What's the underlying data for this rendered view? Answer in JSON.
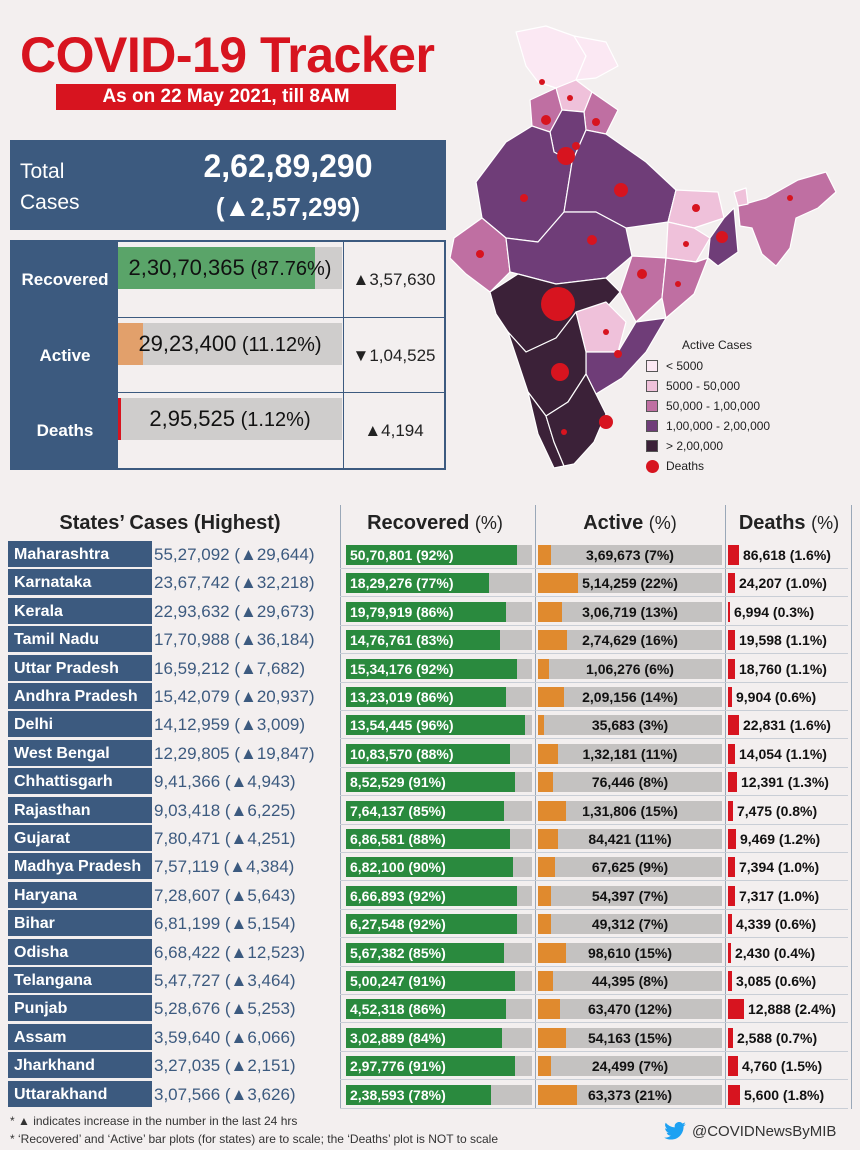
{
  "header": {
    "title": "COVID-19 Tracker",
    "date": "As on 22 May 2021, till 8AM"
  },
  "total": {
    "label": "Total Cases",
    "value": "2,62,89,290",
    "delta": "(▲2,57,299)"
  },
  "summary": [
    {
      "label": "Recovered",
      "value": "2,30,70,365",
      "pct_text": "(87.76%)",
      "pct": 87.76,
      "change": "▲3,57,630",
      "color": "#5aa469"
    },
    {
      "label": "Active",
      "value": "29,23,400",
      "pct_text": "(11.12%)",
      "pct": 11.12,
      "change": "▼1,04,525",
      "color": "#e2a06b"
    },
    {
      "label": "Deaths",
      "value": "2,95,525",
      "pct_text": "(1.12%)",
      "pct": 1.12,
      "change": "▲4,194",
      "color": "#d7141f"
    }
  ],
  "legend": {
    "title": "Active Cases",
    "items": [
      {
        "label": "< 5000",
        "color": "#fbe8f3"
      },
      {
        "label": "5000 - 50,000",
        "color": "#efc1da"
      },
      {
        "label": "50,000 - 1,00,000",
        "color": "#bf6fa2"
      },
      {
        "label": "1,00,000 - 2,00,000",
        "color": "#6f3d78"
      },
      {
        "label": "> 2,00,000",
        "color": "#3b2138"
      }
    ],
    "deaths_label": "Deaths"
  },
  "chart_data": {
    "type": "table",
    "title": "States' Cases (Highest)",
    "columns": [
      "States' Cases (Highest)",
      "Recovered (%)",
      "Active (%)",
      "Deaths (%)"
    ],
    "headers": {
      "states": "States’ Cases (Highest)",
      "recovered": "Recovered",
      "active": "Active",
      "deaths": "Deaths",
      "pct": "(%)"
    },
    "rows": [
      {
        "state": "Maharashtra",
        "cases": "55,27,092 (▲29,644)",
        "recovered": "50,70,801 (92%)",
        "rec_pct": 92,
        "active": "3,69,673 (7%)",
        "act_pct": 7,
        "deaths": "86,618 (1.6%)",
        "death_pct": 1.6
      },
      {
        "state": "Karnataka",
        "cases": "23,67,742 (▲32,218)",
        "recovered": "18,29,276 (77%)",
        "rec_pct": 77,
        "active": "5,14,259 (22%)",
        "act_pct": 22,
        "deaths": "24,207 (1.0%)",
        "death_pct": 1.0
      },
      {
        "state": "Kerala",
        "cases": "22,93,632 (▲29,673)",
        "recovered": "19,79,919 (86%)",
        "rec_pct": 86,
        "active": "3,06,719 (13%)",
        "act_pct": 13,
        "deaths": "6,994 (0.3%)",
        "death_pct": 0.3
      },
      {
        "state": "Tamil Nadu",
        "cases": "17,70,988 (▲36,184)",
        "recovered": "14,76,761 (83%)",
        "rec_pct": 83,
        "active": "2,74,629 (16%)",
        "act_pct": 16,
        "deaths": "19,598 (1.1%)",
        "death_pct": 1.1
      },
      {
        "state": "Uttar Pradesh",
        "cases": "16,59,212 (▲7,682)",
        "recovered": "15,34,176 (92%)",
        "rec_pct": 92,
        "active": "1,06,276 (6%)",
        "act_pct": 6,
        "deaths": "18,760 (1.1%)",
        "death_pct": 1.1
      },
      {
        "state": "Andhra Pradesh",
        "cases": "15,42,079 (▲20,937)",
        "recovered": "13,23,019 (86%)",
        "rec_pct": 86,
        "active": "2,09,156 (14%)",
        "act_pct": 14,
        "deaths": "9,904 (0.6%)",
        "death_pct": 0.6
      },
      {
        "state": "Delhi",
        "cases": "14,12,959 (▲3,009)",
        "recovered": "13,54,445 (96%)",
        "rec_pct": 96,
        "active": "35,683 (3%)",
        "act_pct": 3,
        "deaths": "22,831 (1.6%)",
        "death_pct": 1.6
      },
      {
        "state": "West Bengal",
        "cases": "12,29,805 (▲19,847)",
        "recovered": "10,83,570 (88%)",
        "rec_pct": 88,
        "active": "1,32,181 (11%)",
        "act_pct": 11,
        "deaths": "14,054 (1.1%)",
        "death_pct": 1.1
      },
      {
        "state": "Chhattisgarh",
        "cases": "9,41,366 (▲4,943)",
        "recovered": "8,52,529 (91%)",
        "rec_pct": 91,
        "active": "76,446 (8%)",
        "act_pct": 8,
        "deaths": "12,391 (1.3%)",
        "death_pct": 1.3
      },
      {
        "state": "Rajasthan",
        "cases": "9,03,418 (▲6,225)",
        "recovered": "7,64,137 (85%)",
        "rec_pct": 85,
        "active": "1,31,806 (15%)",
        "act_pct": 15,
        "deaths": "7,475 (0.8%)",
        "death_pct": 0.8
      },
      {
        "state": "Gujarat",
        "cases": "7,80,471 (▲4,251)",
        "recovered": "6,86,581 (88%)",
        "rec_pct": 88,
        "active": "84,421 (11%)",
        "act_pct": 11,
        "deaths": "9,469 (1.2%)",
        "death_pct": 1.2
      },
      {
        "state": "Madhya Pradesh",
        "cases": "7,57,119 (▲4,384)",
        "recovered": "6,82,100 (90%)",
        "rec_pct": 90,
        "active": "67,625 (9%)",
        "act_pct": 9,
        "deaths": "7,394 (1.0%)",
        "death_pct": 1.0
      },
      {
        "state": "Haryana",
        "cases": "7,28,607 (▲5,643)",
        "recovered": "6,66,893 (92%)",
        "rec_pct": 92,
        "active": "54,397 (7%)",
        "act_pct": 7,
        "deaths": "7,317 (1.0%)",
        "death_pct": 1.0
      },
      {
        "state": "Bihar",
        "cases": "6,81,199 (▲5,154)",
        "recovered": "6,27,548 (92%)",
        "rec_pct": 92,
        "active": "49,312 (7%)",
        "act_pct": 7,
        "deaths": "4,339 (0.6%)",
        "death_pct": 0.6
      },
      {
        "state": "Odisha",
        "cases": "6,68,422 (▲12,523)",
        "recovered": "5,67,382 (85%)",
        "rec_pct": 85,
        "active": "98,610 (15%)",
        "act_pct": 15,
        "deaths": "2,430 (0.4%)",
        "death_pct": 0.4
      },
      {
        "state": "Telangana",
        "cases": "5,47,727 (▲3,464)",
        "recovered": "5,00,247 (91%)",
        "rec_pct": 91,
        "active": "44,395 (8%)",
        "act_pct": 8,
        "deaths": "3,085 (0.6%)",
        "death_pct": 0.6
      },
      {
        "state": "Punjab",
        "cases": "5,28,676 (▲5,253)",
        "recovered": "4,52,318 (86%)",
        "rec_pct": 86,
        "active": "63,470 (12%)",
        "act_pct": 12,
        "deaths": "12,888 (2.4%)",
        "death_pct": 2.4
      },
      {
        "state": "Assam",
        "cases": "3,59,640 (▲6,066)",
        "recovered": "3,02,889 (84%)",
        "rec_pct": 84,
        "active": "54,163 (15%)",
        "act_pct": 15,
        "deaths": "2,588 (0.7%)",
        "death_pct": 0.7
      },
      {
        "state": "Jharkhand",
        "cases": "3,27,035 (▲2,151)",
        "recovered": "2,97,776 (91%)",
        "rec_pct": 91,
        "active": "24,499 (7%)",
        "act_pct": 7,
        "deaths": "4,760 (1.5%)",
        "death_pct": 1.5
      },
      {
        "state": "Uttarakhand",
        "cases": "3,07,566 (▲3,626)",
        "recovered": "2,38,593 (78%)",
        "rec_pct": 78,
        "active": "63,373 (21%)",
        "act_pct": 21,
        "deaths": "5,600 (1.8%)",
        "death_pct": 1.8
      }
    ],
    "colors": {
      "recovered": "#2a8a3e",
      "active": "#e08a2e",
      "deaths": "#d7141f",
      "track": "#c4c2c1",
      "state": "#3c5a7f"
    }
  },
  "footnotes": [
    "* ▲ indicates increase in the number in the last 24 hrs",
    "* ‘Recovered’ and ‘Active’ bar plots (for states) are to scale; the ‘Deaths’ plot is NOT to scale"
  ],
  "twitter": {
    "handle": "@COVIDNewsByMIB",
    "icon": "twitter-bird-icon"
  }
}
